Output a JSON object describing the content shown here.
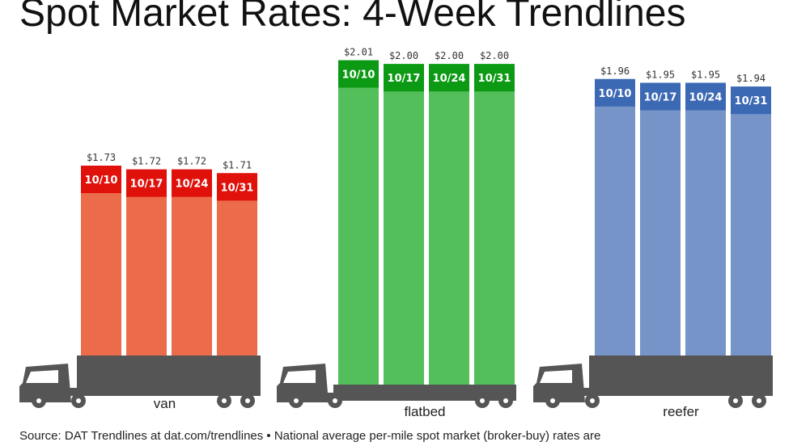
{
  "chart_data": {
    "type": "bar",
    "title": "Spot Market Rates: 4-Week Trendlines",
    "categories": [
      "10/10",
      "10/17",
      "10/24",
      "10/31"
    ],
    "series": [
      {
        "name": "van",
        "values": [
          1.73,
          1.72,
          1.72,
          1.71
        ],
        "labels": [
          "$1.73",
          "$1.72",
          "$1.72",
          "$1.71"
        ],
        "color": "#ec6b4b",
        "cap_color": "#e0100b"
      },
      {
        "name": "flatbed",
        "values": [
          2.01,
          2.0,
          2.0,
          2.0
        ],
        "labels": [
          "$2.01",
          "$2.00",
          "$2.00",
          "$2.00"
        ],
        "color": "#52bf5a",
        "cap_color": "#0c9a14"
      },
      {
        "name": "reefer",
        "values": [
          1.96,
          1.95,
          1.95,
          1.94
        ],
        "labels": [
          "$1.96",
          "$1.95",
          "$1.95",
          "$1.94"
        ],
        "color": "#7694c8",
        "cap_color": "#3c69b3"
      }
    ],
    "legend": "none",
    "grid": false
  },
  "source_note": "Source: DAT Trendlines at dat.com/trendlines • National average per-mile spot market (broker-buy) rates are",
  "colors": {
    "truck": "#555555",
    "text": "#111111"
  },
  "icons": [
    "truck-cab-icon"
  ]
}
